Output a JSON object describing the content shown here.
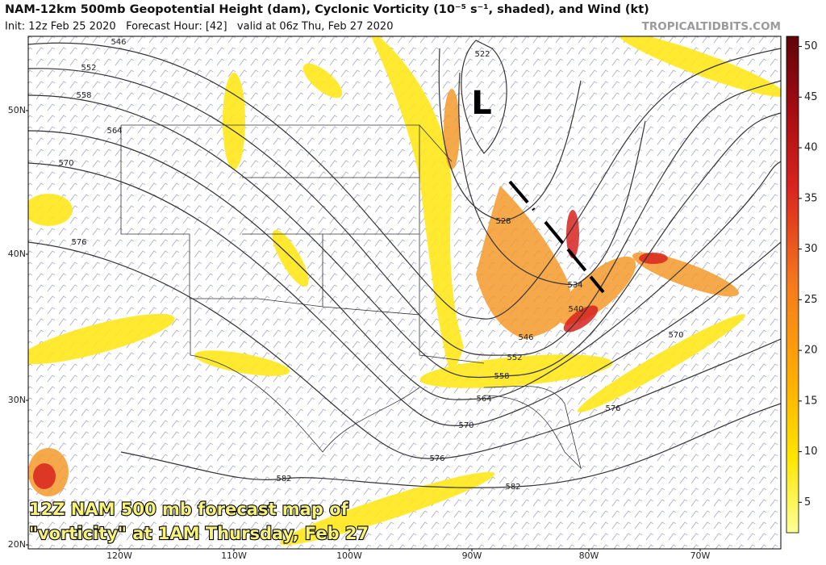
{
  "header": {
    "title": "NAM-12km 500mb Geopotential Height (dam), Cyclonic Vorticity (10⁻⁵ s⁻¹, shaded), and Wind (kt)",
    "subtitle": "Init: 12z Feb 25 2020   Forecast Hour: [42]   valid at 06z Thu, Feb 27 2020",
    "source": "TROPICALTIDBITS.COM"
  },
  "map": {
    "lat_labels": [
      "50N",
      "40N",
      "30N",
      "20N"
    ],
    "lon_labels": [
      "120W",
      "110W",
      "100W",
      "90W",
      "80W",
      "70W"
    ],
    "contour_labels": [
      546,
      552,
      558,
      564,
      570,
      576,
      582,
      576,
      570,
      564,
      558,
      552,
      546,
      540,
      534,
      528,
      522,
      570,
      576,
      582
    ],
    "low_label": "L",
    "annotation": [
      "12Z NAM 500 mb forecast map of",
      "\"vorticity\" at 1AM Thursday, Feb 27"
    ]
  },
  "colorbar": {
    "lim": [
      2,
      51
    ],
    "ticks": [
      5,
      10,
      15,
      20,
      25,
      30,
      35,
      40,
      45,
      50
    ]
  }
}
